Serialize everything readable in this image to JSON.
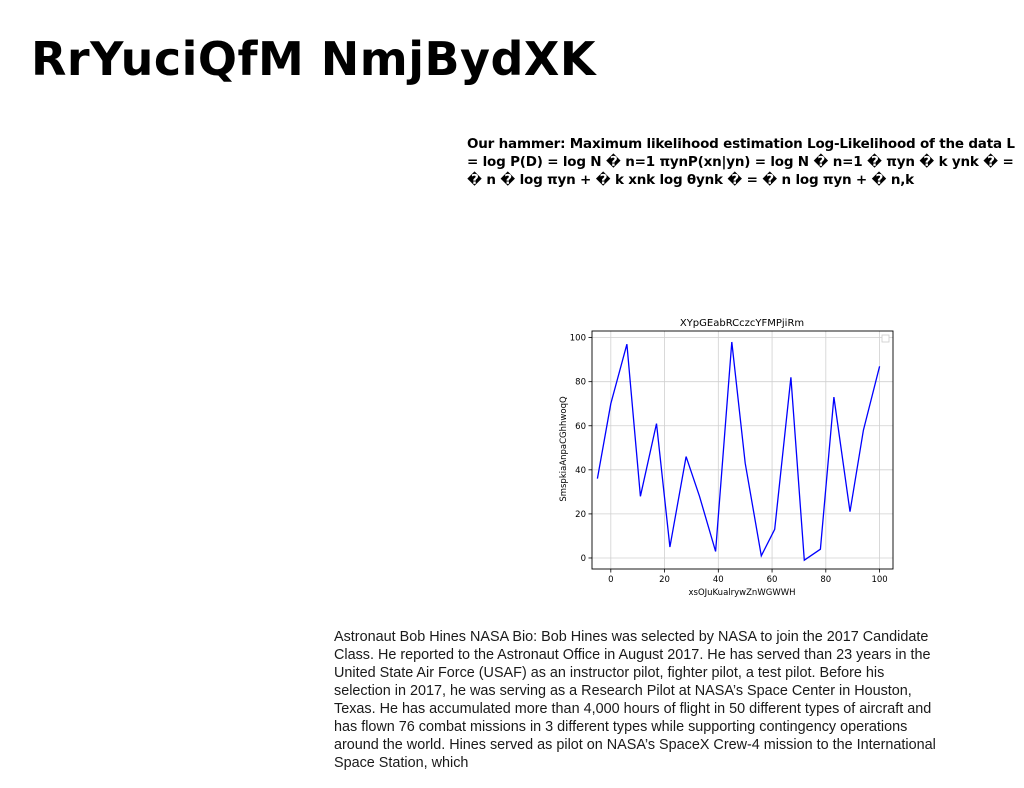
{
  "page": {
    "title": "RrYuciQfM NmjBydXK"
  },
  "formula_block": {
    "text": "Our hammer: Maximum likelihood estimation Log-Likelihood of the data L = log P(D) = log N � n=1 πynP(xn|yn) = log N � n=1 � πyn � k ynk � = � n � log πyn + � k xnk log θynk � = � n log πyn + � n,k"
  },
  "chart_data": {
    "type": "line",
    "title": "XYpGEabRCczcYFMPjiRm",
    "xlabel": "xsOJuKualrywZnWGWWH",
    "ylabel": "SmspkiaAnpaCGhhwoqQ",
    "x": [
      -5,
      0,
      6,
      11,
      17,
      22,
      28,
      33,
      39,
      45,
      50,
      56,
      61,
      67,
      72,
      78,
      83,
      89,
      94,
      100
    ],
    "series": [
      {
        "color": "#0000ff",
        "values": [
          36,
          70,
          97,
          28,
          61,
          5,
          46,
          28,
          3,
          98,
          43,
          1,
          13,
          82,
          -1,
          4,
          73,
          21,
          58,
          87
        ]
      }
    ],
    "xlim": [
      -7,
      105
    ],
    "ylim": [
      -5,
      103
    ],
    "xticks": [
      0,
      20,
      40,
      60,
      80,
      100
    ],
    "yticks": [
      0,
      20,
      40,
      60,
      80,
      100
    ],
    "grid": true,
    "legend": "top-right (empty)"
  },
  "bio": {
    "text": "Astronaut Bob Hines NASA Bio: Bob Hines was selected by NASA to join the 2017 Candidate Class. He reported to the Astronaut Office in August 2017. He has served than 23 years in the United State Air Force (USAF) as an instructor pilot, fighter pilot, a test pilot. Before his selection in 2017, he was serving as a Research Pilot at NASA’s Space Center in Houston, Texas. He has accumulated more than 4,000 hours of flight in 50 different types of aircraft and has flown 76 combat missions in 3 different types while supporting contingency operations around the world. Hines served as pilot on NASA’s SpaceX Crew-4 mission to the International Space Station, which"
  }
}
